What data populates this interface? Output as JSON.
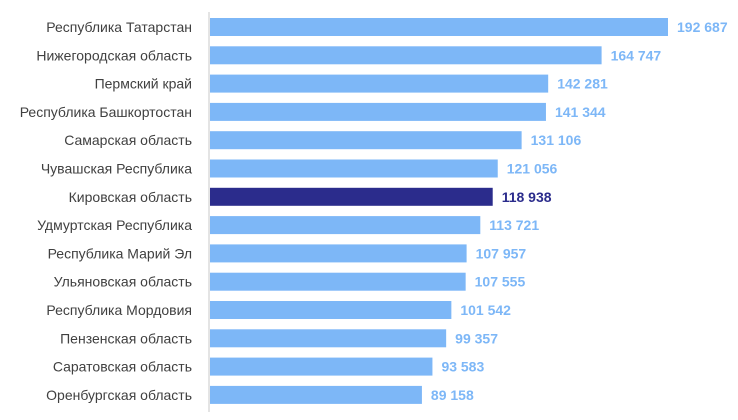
{
  "chart_data": {
    "type": "bar",
    "orientation": "horizontal",
    "title": "",
    "xlabel": "",
    "ylabel": "",
    "categories": [
      "Республика Татарстан",
      "Нижегородская область",
      "Пермский край",
      "Республика Башкортостан",
      "Самарская область",
      "Чувашская Республика",
      "Кировская область",
      "Удмуртская Республика",
      "Республика Марий Эл",
      "Ульяновская область",
      "Республика Мордовия",
      "Пензенская область",
      "Саратовская область",
      "Оренбургская область"
    ],
    "values": [
      192687,
      164747,
      142281,
      141344,
      131106,
      121056,
      118938,
      113721,
      107957,
      107555,
      101542,
      99357,
      93583,
      89158
    ],
    "value_labels": [
      "192 687",
      "164 747",
      "142 281",
      "141 344",
      "131 106",
      "121 056",
      "118 938",
      "113 721",
      "107 957",
      "107 555",
      "101 542",
      "99 357",
      "93 583",
      "89 158"
    ],
    "highlight_index": 6,
    "colors": {
      "bar": "#7db7f7",
      "bar_highlight": "#2b2c8c",
      "label": "#7db7f7",
      "label_highlight": "#2b2c8c",
      "axis": "#c8c8c8",
      "category_text": "#404040"
    },
    "xlim": [
      0,
      192687
    ],
    "grid": false,
    "legend": "none"
  }
}
